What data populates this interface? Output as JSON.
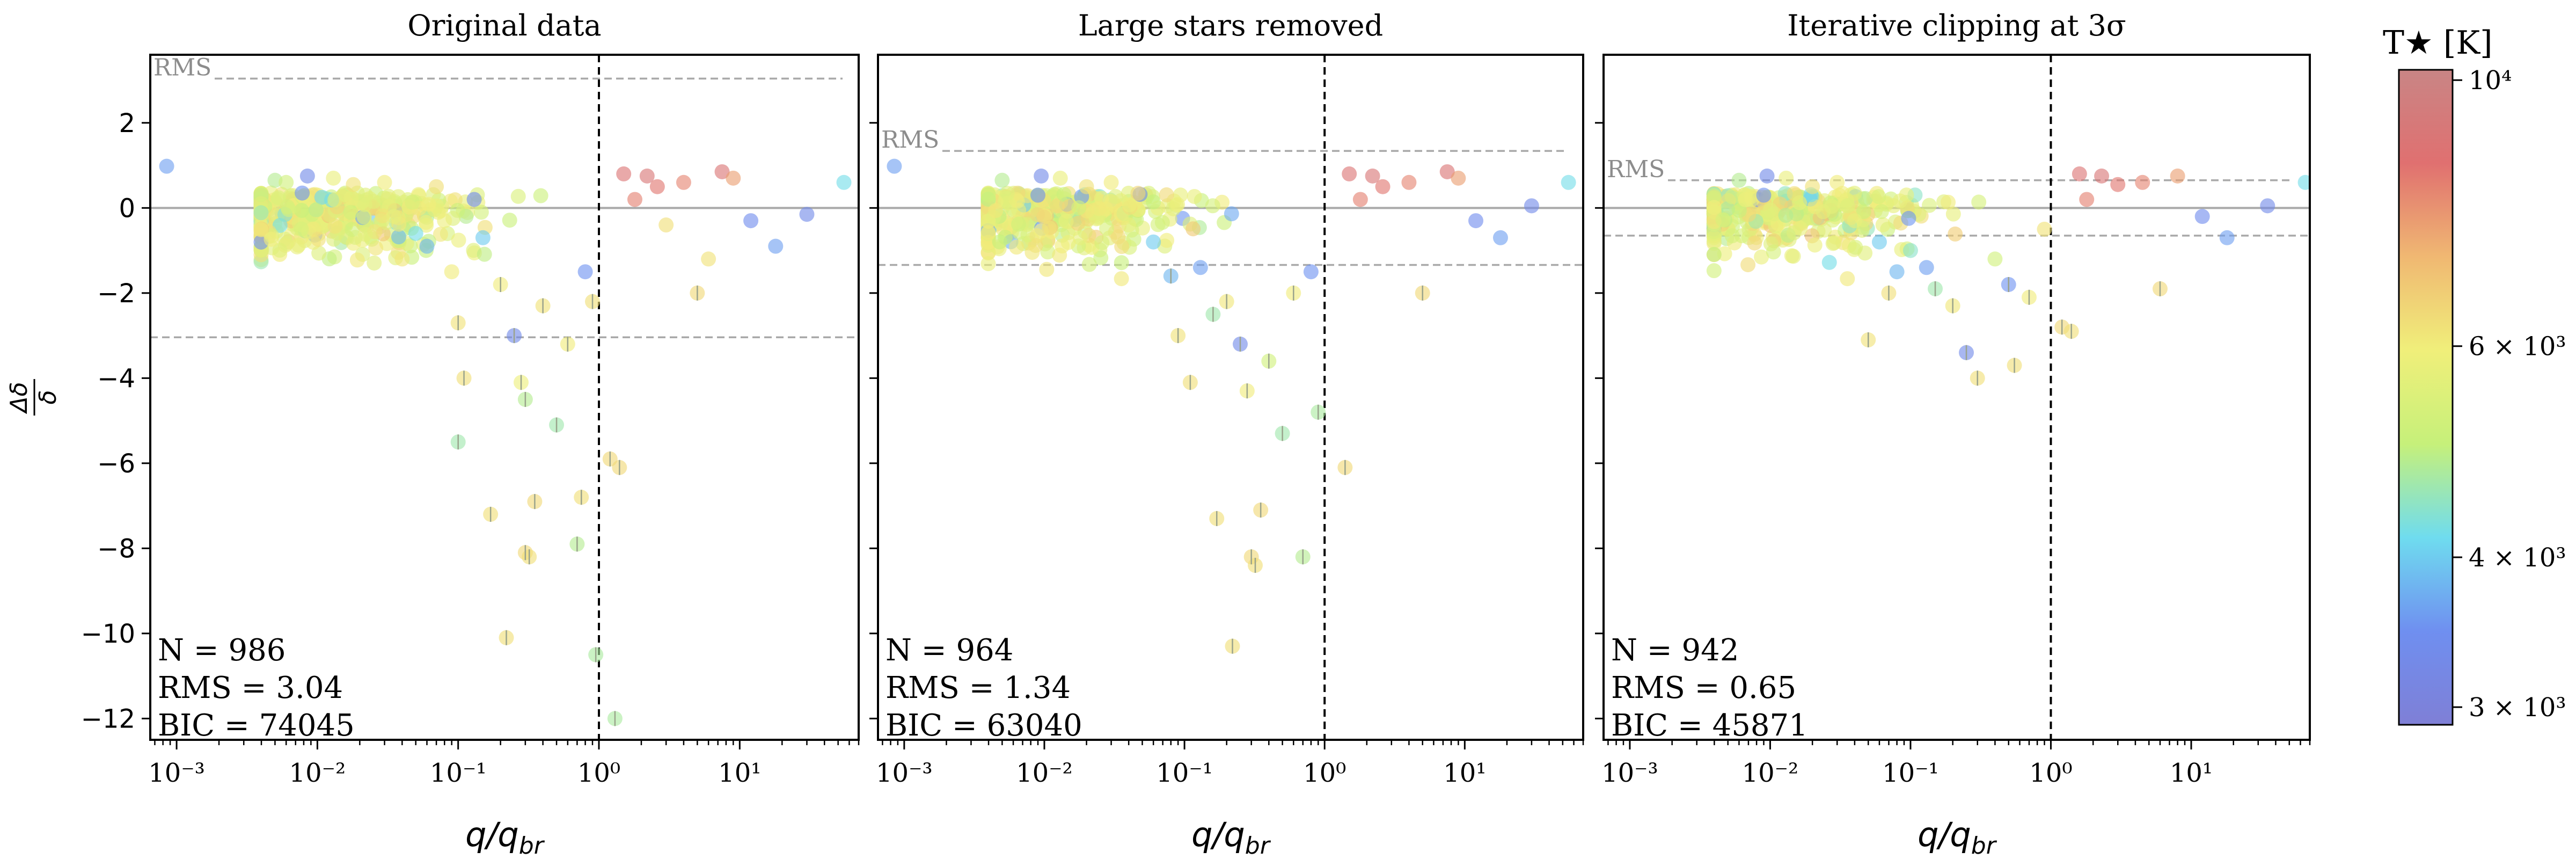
{
  "chart_data": [
    {
      "type": "scatter",
      "title": "Original data",
      "xlabel": "q/q_br",
      "ylabel": "Δδ/δ",
      "xscale": "log",
      "xlim": [
        0.00065,
        70
      ],
      "ylim": [
        -12.5,
        3.6
      ],
      "xticks": [
        "10^-3",
        "10^-2",
        "10^-1",
        "10^0",
        "10^1"
      ],
      "yticks": [
        "2",
        "0",
        "-2",
        "-4",
        "-6",
        "-8",
        "-10",
        "-12"
      ],
      "rms_line_label": "RMS",
      "rms": 3.04,
      "stats": {
        "n": "N = 986",
        "rms": "RMS = 3.04",
        "bic": "BIC = 74045"
      },
      "vline_x": 1.0,
      "points": [
        {
          "x": 0.00085,
          "y": 0.98,
          "t": 3600
        },
        {
          "x": 0.0085,
          "y": 0.75,
          "t": 3300
        },
        {
          "x": 0.0078,
          "y": 0.35,
          "t": 3500
        },
        {
          "x": 0.005,
          "y": 0.65,
          "t": 4800
        },
        {
          "x": 0.006,
          "y": 0.6,
          "t": 5200
        },
        {
          "x": 0.013,
          "y": 0.7,
          "t": 5800
        },
        {
          "x": 0.018,
          "y": 0.55,
          "t": 6200
        },
        {
          "x": 0.022,
          "y": 0.3,
          "t": 5500
        },
        {
          "x": 0.03,
          "y": 0.6,
          "t": 6000
        },
        {
          "x": 0.035,
          "y": -0.2,
          "t": 5700
        },
        {
          "x": 0.04,
          "y": -1.2,
          "t": 6100
        },
        {
          "x": 0.05,
          "y": -0.6,
          "t": 4200
        },
        {
          "x": 0.06,
          "y": -0.9,
          "t": 3800
        },
        {
          "x": 0.07,
          "y": 0.5,
          "t": 6300
        },
        {
          "x": 0.08,
          "y": -0.3,
          "t": 5900
        },
        {
          "x": 0.09,
          "y": -1.5,
          "t": 6000
        },
        {
          "x": 0.1,
          "y": -2.7,
          "t": 6200
        },
        {
          "x": 0.1,
          "y": -5.5,
          "t": 4600
        },
        {
          "x": 0.11,
          "y": -4.0,
          "t": 6300
        },
        {
          "x": 0.13,
          "y": 0.2,
          "t": 3400
        },
        {
          "x": 0.15,
          "y": -0.7,
          "t": 4000
        },
        {
          "x": 0.17,
          "y": -7.2,
          "t": 6300
        },
        {
          "x": 0.2,
          "y": -1.8,
          "t": 6000
        },
        {
          "x": 0.22,
          "y": -10.1,
          "t": 6300
        },
        {
          "x": 0.25,
          "y": -3.0,
          "t": 3300
        },
        {
          "x": 0.28,
          "y": -4.1,
          "t": 5900
        },
        {
          "x": 0.3,
          "y": -8.1,
          "t": 6400
        },
        {
          "x": 0.32,
          "y": -8.2,
          "t": 6300
        },
        {
          "x": 0.3,
          "y": -4.5,
          "t": 4800
        },
        {
          "x": 0.35,
          "y": -6.9,
          "t": 6400
        },
        {
          "x": 0.4,
          "y": -2.3,
          "t": 6200
        },
        {
          "x": 0.5,
          "y": -5.1,
          "t": 4600
        },
        {
          "x": 0.6,
          "y": -3.2,
          "t": 6000
        },
        {
          "x": 0.7,
          "y": -7.9,
          "t": 4800
        },
        {
          "x": 0.75,
          "y": -6.8,
          "t": 6300
        },
        {
          "x": 0.8,
          "y": -1.5,
          "t": 3500
        },
        {
          "x": 0.9,
          "y": -2.2,
          "t": 6300
        },
        {
          "x": 0.95,
          "y": -10.5,
          "t": 4700
        },
        {
          "x": 1.2,
          "y": -5.9,
          "t": 6400
        },
        {
          "x": 1.4,
          "y": -6.1,
          "t": 6400
        },
        {
          "x": 1.3,
          "y": -12.0,
          "t": 4700
        },
        {
          "x": 1.5,
          "y": 0.8,
          "t": 8800
        },
        {
          "x": 1.8,
          "y": 0.2,
          "t": 8200
        },
        {
          "x": 2.2,
          "y": 0.75,
          "t": 9000
        },
        {
          "x": 2.6,
          "y": 0.5,
          "t": 8400
        },
        {
          "x": 3.0,
          "y": -0.4,
          "t": 6300
        },
        {
          "x": 4.0,
          "y": 0.6,
          "t": 8100
        },
        {
          "x": 5.0,
          "y": -2.0,
          "t": 6400
        },
        {
          "x": 6.0,
          "y": -1.2,
          "t": 6200
        },
        {
          "x": 7.5,
          "y": 0.85,
          "t": 8900
        },
        {
          "x": 9.0,
          "y": 0.7,
          "t": 7600
        },
        {
          "x": 12.0,
          "y": -0.3,
          "t": 3400
        },
        {
          "x": 18.0,
          "y": -0.9,
          "t": 3600
        },
        {
          "x": 30.0,
          "y": -0.15,
          "t": 3300
        },
        {
          "x": 55.0,
          "y": 0.6,
          "t": 4200
        }
      ]
    },
    {
      "type": "scatter",
      "title": "Large stars removed",
      "xlabel": "q/q_br",
      "ylabel": "",
      "xscale": "log",
      "xlim": [
        0.00065,
        70
      ],
      "ylim": [
        -12.5,
        3.6
      ],
      "xticks": [
        "10^-3",
        "10^-2",
        "10^-1",
        "10^0",
        "10^1"
      ],
      "rms_line_label": "RMS",
      "rms": 1.34,
      "stats": {
        "n": "N = 964",
        "rms": "RMS = 1.34",
        "bic": "BIC = 63040"
      },
      "vline_x": 1.0,
      "points": [
        {
          "x": 0.00085,
          "y": 0.98,
          "t": 3600
        },
        {
          "x": 0.0095,
          "y": 0.75,
          "t": 3300
        },
        {
          "x": 0.009,
          "y": 0.3,
          "t": 3500
        },
        {
          "x": 0.005,
          "y": 0.65,
          "t": 4800
        },
        {
          "x": 0.013,
          "y": 0.7,
          "t": 5800
        },
        {
          "x": 0.02,
          "y": 0.5,
          "t": 6200
        },
        {
          "x": 0.03,
          "y": 0.6,
          "t": 6000
        },
        {
          "x": 0.04,
          "y": -0.4,
          "t": 5700
        },
        {
          "x": 0.06,
          "y": -0.8,
          "t": 4000
        },
        {
          "x": 0.08,
          "y": -1.6,
          "t": 3800
        },
        {
          "x": 0.09,
          "y": -3.0,
          "t": 6200
        },
        {
          "x": 0.11,
          "y": -4.1,
          "t": 6300
        },
        {
          "x": 0.13,
          "y": -1.4,
          "t": 3600
        },
        {
          "x": 0.16,
          "y": -2.5,
          "t": 4600
        },
        {
          "x": 0.17,
          "y": -7.3,
          "t": 6300
        },
        {
          "x": 0.2,
          "y": -2.2,
          "t": 6100
        },
        {
          "x": 0.22,
          "y": -10.3,
          "t": 6300
        },
        {
          "x": 0.25,
          "y": -3.2,
          "t": 3300
        },
        {
          "x": 0.28,
          "y": -4.3,
          "t": 6000
        },
        {
          "x": 0.3,
          "y": -8.2,
          "t": 6400
        },
        {
          "x": 0.32,
          "y": -8.4,
          "t": 6300
        },
        {
          "x": 0.35,
          "y": -7.1,
          "t": 6400
        },
        {
          "x": 0.4,
          "y": -3.6,
          "t": 5200
        },
        {
          "x": 0.5,
          "y": -5.3,
          "t": 4600
        },
        {
          "x": 0.6,
          "y": -2.0,
          "t": 6000
        },
        {
          "x": 0.7,
          "y": -8.2,
          "t": 4800
        },
        {
          "x": 0.8,
          "y": -1.5,
          "t": 3500
        },
        {
          "x": 0.9,
          "y": -4.8,
          "t": 4700
        },
        {
          "x": 1.4,
          "y": -6.1,
          "t": 6400
        },
        {
          "x": 1.5,
          "y": 0.8,
          "t": 8800
        },
        {
          "x": 1.8,
          "y": 0.2,
          "t": 8200
        },
        {
          "x": 2.2,
          "y": 0.75,
          "t": 9000
        },
        {
          "x": 2.6,
          "y": 0.5,
          "t": 8400
        },
        {
          "x": 4.0,
          "y": 0.6,
          "t": 8100
        },
        {
          "x": 5.0,
          "y": -2.0,
          "t": 6400
        },
        {
          "x": 7.5,
          "y": 0.85,
          "t": 8900
        },
        {
          "x": 9.0,
          "y": 0.7,
          "t": 7600
        },
        {
          "x": 12.0,
          "y": -0.3,
          "t": 3400
        },
        {
          "x": 18.0,
          "y": -0.7,
          "t": 3600
        },
        {
          "x": 30.0,
          "y": 0.05,
          "t": 3300
        },
        {
          "x": 55.0,
          "y": 0.6,
          "t": 4200
        }
      ]
    },
    {
      "type": "scatter",
      "title": "Iterative clipping at 3σ",
      "xlabel": "q/q_br",
      "ylabel": "",
      "xscale": "log",
      "xlim": [
        0.00065,
        70
      ],
      "ylim": [
        -12.5,
        3.6
      ],
      "xticks": [
        "10^-3",
        "10^-2",
        "10^-1",
        "10^0",
        "10^1"
      ],
      "rms_line_label": "RMS",
      "rms": 0.65,
      "stats": {
        "n": "N = 942",
        "rms": "RMS = 0.65",
        "bic": "BIC = 45871"
      },
      "vline_x": 1.0,
      "points": [
        {
          "x": 0.006,
          "y": 0.65,
          "t": 4800
        },
        {
          "x": 0.0095,
          "y": 0.75,
          "t": 3300
        },
        {
          "x": 0.009,
          "y": 0.3,
          "t": 3500
        },
        {
          "x": 0.013,
          "y": 0.7,
          "t": 5800
        },
        {
          "x": 0.02,
          "y": 0.5,
          "t": 6200
        },
        {
          "x": 0.03,
          "y": 0.6,
          "t": 6000
        },
        {
          "x": 0.04,
          "y": -0.3,
          "t": 5700
        },
        {
          "x": 0.06,
          "y": -0.8,
          "t": 4000
        },
        {
          "x": 0.07,
          "y": -2.0,
          "t": 6300
        },
        {
          "x": 0.08,
          "y": -1.5,
          "t": 3800
        },
        {
          "x": 0.05,
          "y": -3.1,
          "t": 6200
        },
        {
          "x": 0.1,
          "y": -1.0,
          "t": 4400
        },
        {
          "x": 0.13,
          "y": -1.4,
          "t": 3600
        },
        {
          "x": 0.15,
          "y": -1.9,
          "t": 4600
        },
        {
          "x": 0.2,
          "y": -2.3,
          "t": 6100
        },
        {
          "x": 0.25,
          "y": -3.4,
          "t": 3300
        },
        {
          "x": 0.3,
          "y": -4.0,
          "t": 6300
        },
        {
          "x": 0.4,
          "y": -1.2,
          "t": 5200
        },
        {
          "x": 0.5,
          "y": -1.8,
          "t": 3500
        },
        {
          "x": 0.55,
          "y": -3.7,
          "t": 6300
        },
        {
          "x": 0.7,
          "y": -2.1,
          "t": 6000
        },
        {
          "x": 0.9,
          "y": -0.5,
          "t": 6200
        },
        {
          "x": 1.2,
          "y": -2.8,
          "t": 6400
        },
        {
          "x": 1.4,
          "y": -2.9,
          "t": 6300
        },
        {
          "x": 1.6,
          "y": 0.8,
          "t": 8800
        },
        {
          "x": 1.8,
          "y": 0.2,
          "t": 8200
        },
        {
          "x": 2.3,
          "y": 0.75,
          "t": 9000
        },
        {
          "x": 3.0,
          "y": 0.55,
          "t": 8400
        },
        {
          "x": 4.5,
          "y": 0.6,
          "t": 8100
        },
        {
          "x": 6.0,
          "y": -1.9,
          "t": 6400
        },
        {
          "x": 8.0,
          "y": 0.75,
          "t": 7600
        },
        {
          "x": 12.0,
          "y": -0.2,
          "t": 3400
        },
        {
          "x": 18.0,
          "y": -0.7,
          "t": 3600
        },
        {
          "x": 35.0,
          "y": 0.05,
          "t": 3300
        },
        {
          "x": 65.0,
          "y": 0.6,
          "t": 4200
        }
      ]
    }
  ],
  "colorbar": {
    "label": "T★ [K]",
    "scale": "log",
    "range": [
      2900,
      10200
    ],
    "ticks": [
      {
        "value": 10000,
        "label": "10^4"
      },
      {
        "value": 6000,
        "label": "6 × 10^3"
      },
      {
        "value": 4000,
        "label": "4 × 10^3"
      },
      {
        "value": 3000,
        "label": "3 × 10^3"
      }
    ],
    "colors": [
      "#7f7fd6",
      "#6f8ff0",
      "#6fdcef",
      "#c6f07a",
      "#f0ef7a",
      "#f0b872",
      "#e07070",
      "#c98585"
    ]
  }
}
